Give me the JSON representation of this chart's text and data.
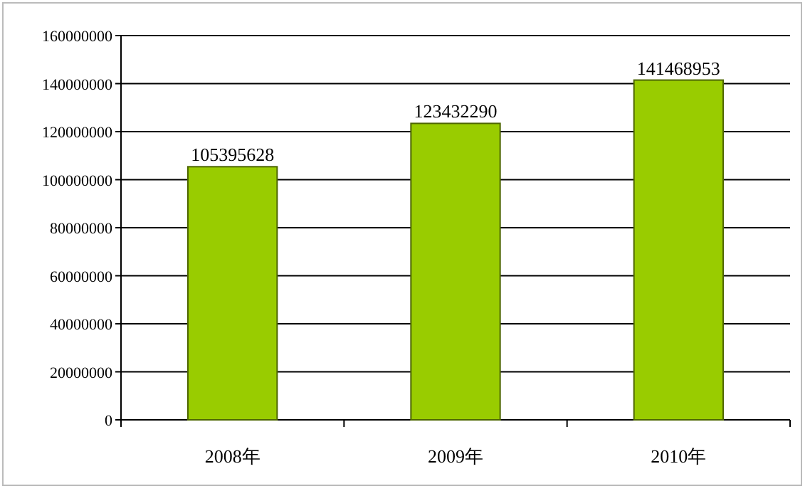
{
  "chart_data": {
    "type": "bar",
    "categories": [
      "2008年",
      "2009年",
      "2010年"
    ],
    "values": [
      105395628,
      123432290,
      141468953
    ],
    "color": "#99cc00",
    "ylim": [
      0,
      160000000
    ],
    "yticks": [
      0,
      20000000,
      40000000,
      60000000,
      80000000,
      100000000,
      120000000,
      140000000,
      160000000
    ],
    "grid": "y",
    "data_labels": true
  }
}
